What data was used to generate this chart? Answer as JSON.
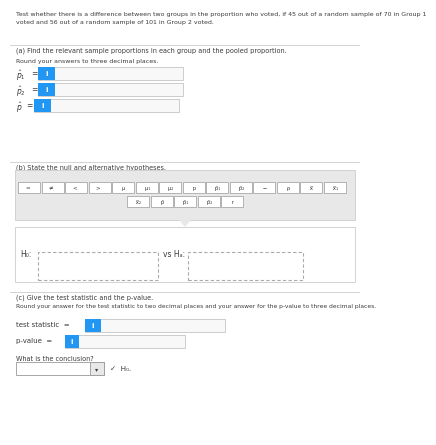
{
  "title_text1": "Test whether there is a difference between two groups in the proportion who voted, if 45 out of a random sample of 70 in Group 1",
  "title_text2": "voted and 56 out of a random sample of 101 in Group 2 voted.",
  "part_a_header": "(a) Find the relevant sample proportions in each group and the pooled proportion.",
  "part_a_sub": "Round your answers to three decimal places.",
  "part_b_header": "(b) State the null and alternative hypotheses.",
  "toolbar_row1": [
    "= ",
    "≠ ",
    "< ",
    "> ",
    " μ",
    " μ₁",
    " μ₂",
    " p",
    " p̂₁",
    " p̂₂",
    " −",
    " ρ",
    " x̅",
    " x̅₁"
  ],
  "toolbar_row2": [
    " x̅₂",
    " p̂",
    " p̂₁",
    " p̂₂",
    " r"
  ],
  "h0_label": "H₀:",
  "ha_label": "vs Hₐ:",
  "part_c_header": "(c) Give the test statistic and the p-value.",
  "part_c_sub": "Round your answer for the test statistic to two decimal places and your answer for the p-value to three decimal places.",
  "ts_label": "test statistic  =",
  "pv_label": "p-value  =",
  "conclusion_label": "What is the conclusion?",
  "conclusion_check": "✓  H₀.",
  "bg_white": "#ffffff",
  "bg_light": "#f7f7f7",
  "bg_section": "#f0f0f0",
  "toolbar_bg": "#e8e8e8",
  "blue": "#2196F3",
  "border": "#cccccc",
  "dark_border": "#999999",
  "text_dark": "#3a3a3a",
  "text_mid": "#555555",
  "dashed_color": "#aaaaaa"
}
